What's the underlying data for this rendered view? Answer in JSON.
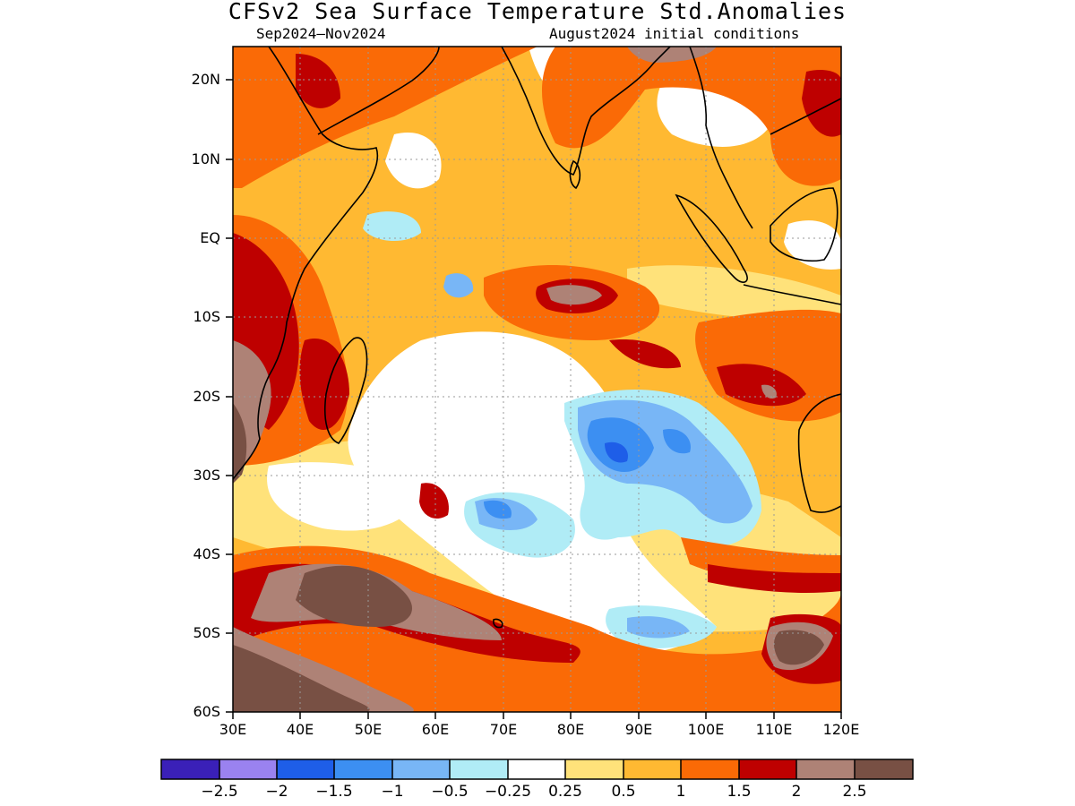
{
  "title": "CFSv2 Sea Surface Temperature Std.Anomalies",
  "subtitle_left": "Sep2024–Nov2024",
  "subtitle_right": "August2024 initial conditions",
  "lat_labels": [
    "20N",
    "10N",
    "EQ",
    "10S",
    "20S",
    "30S",
    "40S",
    "50S",
    "60S"
  ],
  "lon_labels": [
    "30E",
    "40E",
    "50E",
    "60E",
    "70E",
    "80E",
    "90E",
    "100E",
    "110E",
    "120E"
  ],
  "map_extent": {
    "lon_min": 30,
    "lon_max": 120,
    "lat_min": -60,
    "lat_max": 24
  },
  "colorbar": {
    "colors": [
      "#3a20b8",
      "#9a82f0",
      "#1e5ee8",
      "#3c8ff2",
      "#78b6f6",
      "#b0ecf6",
      "#ffffff",
      "#ffe27a",
      "#ffb932",
      "#fa6a06",
      "#be0000",
      "#ae8276",
      "#785044"
    ],
    "labels": [
      "−2.5",
      "−2",
      "−1.5",
      "−1",
      "−0.5",
      "−0.25",
      "0.25",
      "0.5",
      "1",
      "1.5",
      "2",
      "2.5"
    ]
  }
}
